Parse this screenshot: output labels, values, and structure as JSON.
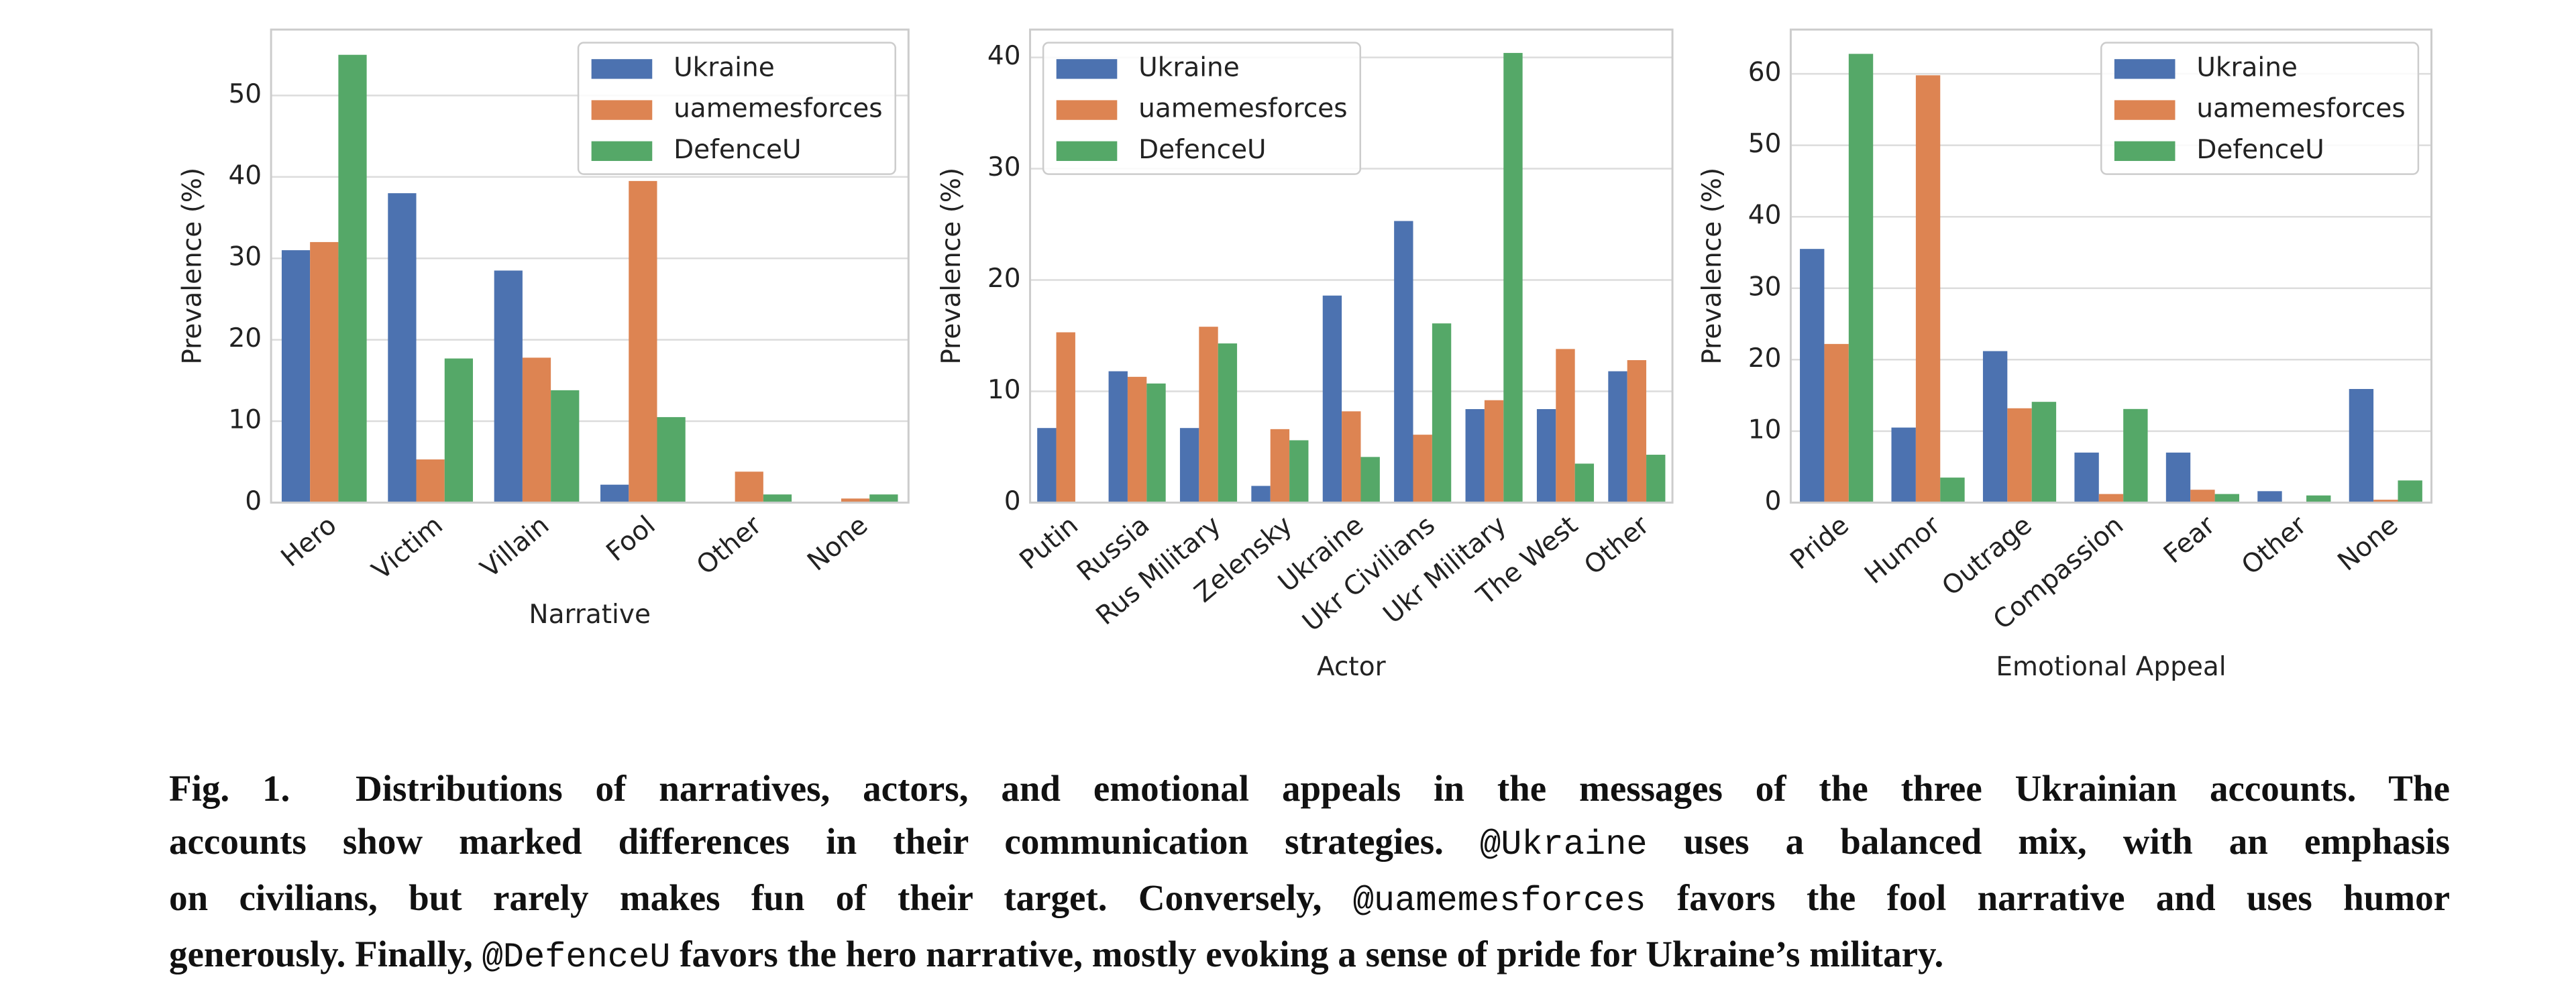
{
  "chart_data": [
    {
      "type": "bar",
      "xlabel": "Narrative",
      "ylabel": "Prevalence (%)",
      "categories": [
        "Hero",
        "Victim",
        "Villain",
        "Fool",
        "Other",
        "None"
      ],
      "series": [
        {
          "name": "Ukraine",
          "color": "#4c72b0",
          "values": [
            31,
            38,
            28.5,
            2.2,
            0,
            0
          ]
        },
        {
          "name": "uamemesforces",
          "color": "#dd8452",
          "values": [
            32,
            5.3,
            17.8,
            39.5,
            3.8,
            0.5
          ]
        },
        {
          "name": "DefenceU",
          "color": "#55a868",
          "values": [
            55,
            17.7,
            13.8,
            10.5,
            1.0,
            1.0
          ]
        }
      ],
      "ylim": [
        0,
        58.1
      ],
      "yticks": [
        0,
        10,
        20,
        30,
        40,
        50
      ],
      "grid": true,
      "legend": "upper right"
    },
    {
      "type": "bar",
      "xlabel": "Actor",
      "ylabel": "Prevalence (%)",
      "categories": [
        "Putin",
        "Russia",
        "Rus Military",
        "Zelensky",
        "Ukraine",
        "Ukr Civilians",
        "Ukr Military",
        "The West",
        "Other"
      ],
      "series": [
        {
          "name": "Ukraine",
          "color": "#4c72b0",
          "values": [
            6.7,
            11.8,
            6.7,
            1.5,
            18.6,
            25.3,
            8.4,
            8.4,
            11.8
          ]
        },
        {
          "name": "uamemesforces",
          "color": "#dd8452",
          "values": [
            15.3,
            11.3,
            15.8,
            6.6,
            8.2,
            6.1,
            9.2,
            13.8,
            12.8
          ]
        },
        {
          "name": "DefenceU",
          "color": "#55a868",
          "values": [
            0,
            10.7,
            14.3,
            5.6,
            4.1,
            16.1,
            40.4,
            3.5,
            4.3
          ]
        }
      ],
      "ylim": [
        0,
        42.5
      ],
      "yticks": [
        0,
        10,
        20,
        30,
        40
      ],
      "grid": true,
      "legend": "upper left"
    },
    {
      "type": "bar",
      "xlabel": "Emotional Appeal",
      "ylabel": "Prevalence (%)",
      "categories": [
        "Pride",
        "Humor",
        "Outrage",
        "Compassion",
        "Fear",
        "Other",
        "None"
      ],
      "series": [
        {
          "name": "Ukraine",
          "color": "#4c72b0",
          "values": [
            35.5,
            10.5,
            21.2,
            7,
            7,
            1.6,
            15.9
          ]
        },
        {
          "name": "uamemesforces",
          "color": "#dd8452",
          "values": [
            22.2,
            59.8,
            13.2,
            1.2,
            1.8,
            0,
            0.4
          ]
        },
        {
          "name": "DefenceU",
          "color": "#55a868",
          "values": [
            62.8,
            3.5,
            14.1,
            13.1,
            1.2,
            1.0,
            3.1
          ]
        }
      ],
      "ylim": [
        0,
        66.2
      ],
      "yticks": [
        0,
        10,
        20,
        30,
        40,
        50,
        60
      ],
      "grid": true,
      "legend": "upper right"
    }
  ],
  "caption": {
    "lines": [
      [
        "Fig. 1.  Distributions of narratives, actors, and emotional appeals in the messages of the three Ukrainian accounts. The"
      ],
      [
        "accounts show marked differences in their communication strategies. ",
        {
          "mono": "@Ukraine"
        },
        " uses a balanced mix, with an emphasis"
      ],
      [
        "on civilians, but rarely makes fun of their target. Conversely, ",
        {
          "mono": "@uamemesforces"
        },
        " favors the fool narrative and uses humor"
      ],
      [
        "generously. Finally, ",
        {
          "mono": "@DefenceU"
        },
        " favors the hero narrative, mostly evoking a sense of pride for Ukraine’s military."
      ]
    ]
  }
}
